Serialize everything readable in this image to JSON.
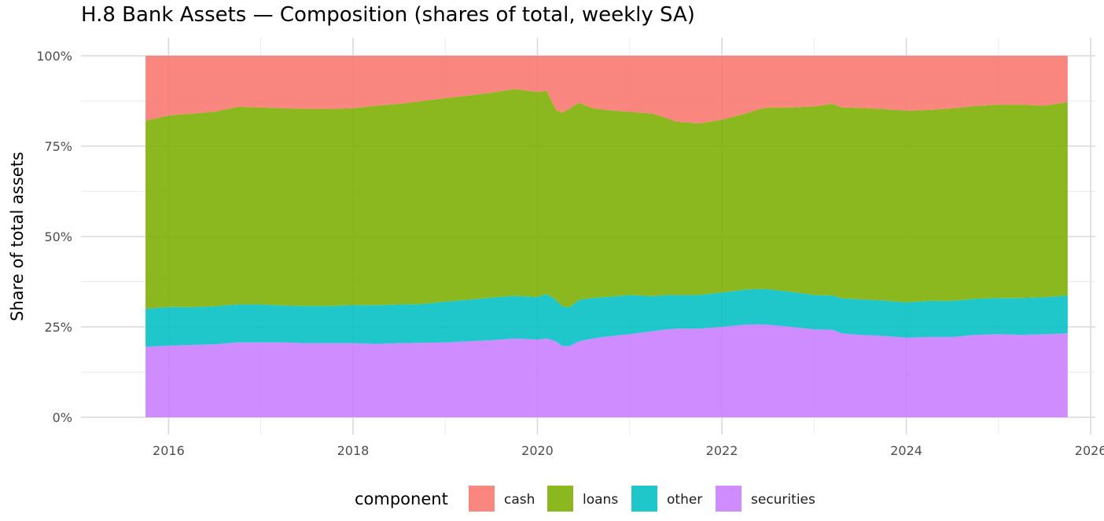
{
  "chart_data": {
    "type": "area",
    "stacked": true,
    "normalized": true,
    "title": "H.8 Bank Assets — Composition (shares of total, weekly SA)",
    "xlabel": "",
    "ylabel": "Share of total assets",
    "xlim": [
      2015.05,
      2026.05
    ],
    "ylim": [
      0,
      1
    ],
    "x_ticks": [
      2016,
      2018,
      2020,
      2022,
      2024,
      2026
    ],
    "x_tick_labels": [
      "2016",
      "2018",
      "2020",
      "2022",
      "2024",
      "2026"
    ],
    "y_ticks": [
      0,
      0.25,
      0.5,
      0.75,
      1
    ],
    "y_tick_labels": [
      "0%",
      "25%",
      "50%",
      "75%",
      "100%"
    ],
    "grid": true,
    "legend_position": "bottom",
    "legend_title": "component",
    "x": [
      2015.75,
      2016.0,
      2016.25,
      2016.5,
      2016.75,
      2017.0,
      2017.25,
      2017.5,
      2017.75,
      2018.0,
      2018.25,
      2018.5,
      2018.75,
      2019.0,
      2019.25,
      2019.5,
      2019.75,
      2020.0,
      2020.1,
      2020.2,
      2020.27,
      2020.35,
      2020.45,
      2020.6,
      2020.75,
      2021.0,
      2021.25,
      2021.4,
      2021.5,
      2021.75,
      2022.0,
      2022.25,
      2022.4,
      2022.5,
      2022.75,
      2023.0,
      2023.2,
      2023.3,
      2023.5,
      2023.75,
      2024.0,
      2024.25,
      2024.5,
      2024.75,
      2025.0,
      2025.25,
      2025.5,
      2025.75
    ],
    "series": [
      {
        "name": "securities",
        "color": "#C77CFF",
        "values": [
          0.195,
          0.198,
          0.2,
          0.202,
          0.207,
          0.207,
          0.207,
          0.205,
          0.205,
          0.205,
          0.203,
          0.205,
          0.206,
          0.207,
          0.21,
          0.213,
          0.218,
          0.215,
          0.218,
          0.21,
          0.197,
          0.197,
          0.21,
          0.218,
          0.223,
          0.23,
          0.238,
          0.243,
          0.245,
          0.245,
          0.25,
          0.256,
          0.257,
          0.256,
          0.25,
          0.243,
          0.242,
          0.232,
          0.228,
          0.225,
          0.22,
          0.222,
          0.222,
          0.228,
          0.23,
          0.228,
          0.23,
          0.232
        ]
      },
      {
        "name": "other",
        "color": "#00BFC4",
        "values": [
          0.105,
          0.107,
          0.105,
          0.105,
          0.105,
          0.105,
          0.102,
          0.103,
          0.103,
          0.105,
          0.107,
          0.107,
          0.107,
          0.113,
          0.115,
          0.118,
          0.118,
          0.118,
          0.123,
          0.115,
          0.11,
          0.107,
          0.115,
          0.112,
          0.11,
          0.108,
          0.097,
          0.095,
          0.093,
          0.093,
          0.095,
          0.097,
          0.098,
          0.098,
          0.097,
          0.095,
          0.095,
          0.097,
          0.098,
          0.098,
          0.098,
          0.1,
          0.1,
          0.1,
          0.1,
          0.102,
          0.102,
          0.105
        ]
      },
      {
        "name": "loans",
        "color": "#7CAE00",
        "values": [
          0.52,
          0.53,
          0.535,
          0.538,
          0.547,
          0.545,
          0.546,
          0.545,
          0.545,
          0.545,
          0.552,
          0.555,
          0.562,
          0.563,
          0.565,
          0.567,
          0.572,
          0.567,
          0.562,
          0.525,
          0.535,
          0.55,
          0.545,
          0.525,
          0.517,
          0.507,
          0.505,
          0.49,
          0.48,
          0.475,
          0.478,
          0.487,
          0.497,
          0.503,
          0.51,
          0.522,
          0.53,
          0.528,
          0.53,
          0.53,
          0.53,
          0.528,
          0.533,
          0.533,
          0.535,
          0.535,
          0.53,
          0.535
        ]
      },
      {
        "name": "cash",
        "color": "#F8766D",
        "values": [
          0.18,
          0.165,
          0.16,
          0.155,
          0.141,
          0.143,
          0.145,
          0.147,
          0.147,
          0.145,
          0.138,
          0.133,
          0.125,
          0.117,
          0.11,
          0.102,
          0.092,
          0.1,
          0.097,
          0.15,
          0.158,
          0.146,
          0.13,
          0.145,
          0.15,
          0.155,
          0.16,
          0.172,
          0.182,
          0.187,
          0.177,
          0.16,
          0.148,
          0.143,
          0.143,
          0.14,
          0.133,
          0.143,
          0.144,
          0.147,
          0.152,
          0.15,
          0.145,
          0.139,
          0.135,
          0.135,
          0.138,
          0.128
        ]
      }
    ]
  }
}
